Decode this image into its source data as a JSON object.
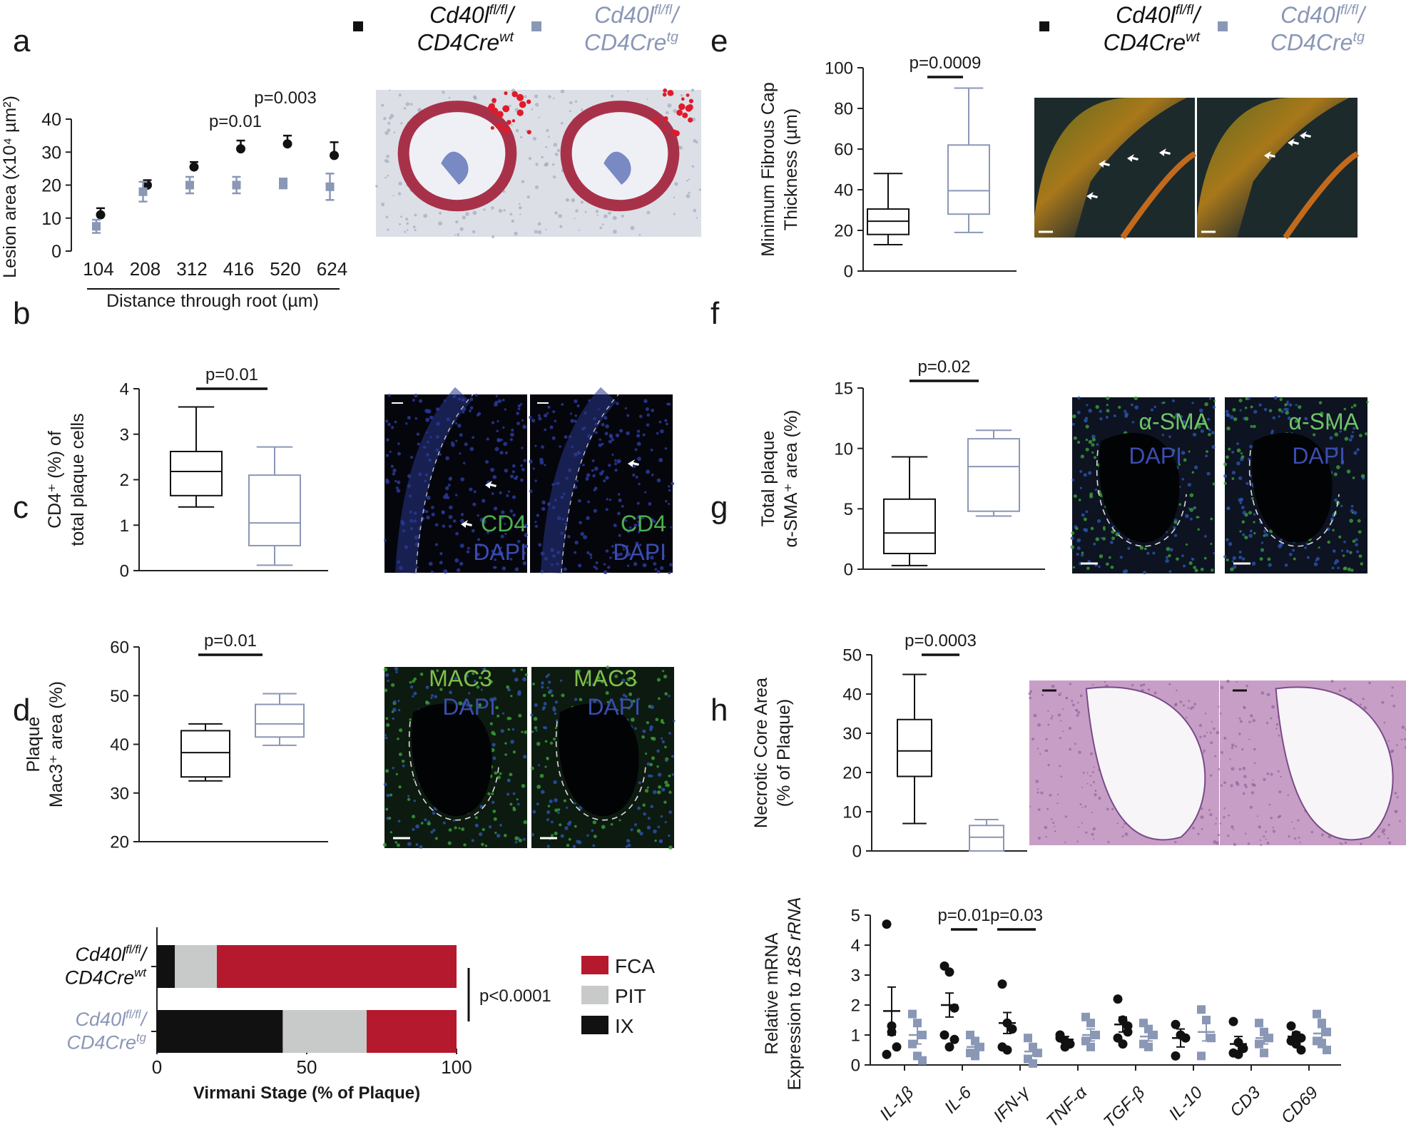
{
  "legend_top": {
    "wt": {
      "line1": "Cd40l",
      "sup1": "fl/fl",
      "slash": "/",
      "line2": "CD4Cre",
      "sup2": "wt"
    },
    "tg": {
      "line1": "Cd40l",
      "sup1": "fl/fl",
      "slash": "/",
      "line2": "CD4Cre",
      "sup2": "tg"
    }
  },
  "colors": {
    "wt": "#111111",
    "tg": "#8a97b5",
    "fca": "#b5192e",
    "pit": "#c8cac9",
    "ix": "#111111"
  },
  "panels": {
    "a": {
      "letter": "a",
      "p1": "p=0.01",
      "p2": "p=0.003"
    },
    "b": {
      "letter": "b",
      "p": "p=0.01"
    },
    "c": {
      "letter": "c",
      "p": "p=0.01"
    },
    "d": {
      "letter": "d",
      "p": "p<0.0001"
    },
    "e": {
      "letter": "e",
      "p": "p=0.0009"
    },
    "f": {
      "letter": "f",
      "p": "p=0.02"
    },
    "g": {
      "letter": "g",
      "p": "p=0.0003"
    },
    "h": {
      "letter": "h",
      "p1": "p=0.01",
      "p2": "p=0.03"
    }
  },
  "micro_labels": {
    "b_left_1": "CD4",
    "b_left_2": "DAPI",
    "b_right_1": "CD4",
    "b_right_2": "DAPI",
    "c_left_1": "MAC3",
    "c_left_2": "DAPI",
    "c_right_1": "MAC3",
    "c_right_2": "DAPI",
    "f_left_1": "α-SMA",
    "f_left_2": "DAPI",
    "f_right_1": "α-SMA",
    "f_right_2": "DAPI"
  },
  "chart_data": [
    {
      "id": "a",
      "type": "scatter",
      "xlabel": "Distance through root (µm)",
      "ylabel": "Lesion area (x10⁴ µm²)",
      "categories": [
        "104",
        "208",
        "312",
        "416",
        "520",
        "624"
      ],
      "ylim": [
        0,
        40
      ],
      "yticks": [
        0,
        10,
        20,
        30,
        40
      ],
      "series": [
        {
          "key": "wt",
          "values": [
            11,
            20,
            25.5,
            31,
            32.5,
            29
          ],
          "err": [
            2,
            1.5,
            1.5,
            2.5,
            2.5,
            4
          ]
        },
        {
          "key": "tg",
          "values": [
            7.5,
            18,
            20,
            20,
            20.5,
            19.5
          ],
          "err": [
            2,
            3,
            2.5,
            2.5,
            1.5,
            4
          ]
        }
      ]
    },
    {
      "id": "b",
      "type": "box",
      "ylabel1": "CD4⁺ (%) of",
      "ylabel2": "total plaque cells",
      "ylim": [
        0,
        4
      ],
      "yticks": [
        0,
        1,
        2,
        3,
        4
      ],
      "boxes": [
        {
          "key": "wt",
          "min": 1.4,
          "q1": 1.65,
          "median": 2.18,
          "q3": 2.62,
          "max": 3.6
        },
        {
          "key": "tg",
          "min": 0.12,
          "q1": 0.55,
          "median": 1.05,
          "q3": 2.1,
          "max": 2.72
        }
      ]
    },
    {
      "id": "c",
      "type": "box",
      "ylabel1": "Plaque",
      "ylabel2": "Mac3⁺ area (%)",
      "ylim": [
        20,
        60
      ],
      "yticks": [
        20,
        30,
        40,
        50,
        60
      ],
      "boxes": [
        {
          "key": "wt",
          "min": 32.5,
          "q1": 33.3,
          "median": 38.3,
          "q3": 42.8,
          "max": 44.2
        },
        {
          "key": "tg",
          "min": 39.8,
          "q1": 41.5,
          "median": 44.2,
          "q3": 48.2,
          "max": 50.4
        }
      ]
    },
    {
      "id": "d",
      "type": "bar",
      "orientation": "horizontal",
      "stacked": true,
      "xlabel": "Virmani Stage (% of Plaque)",
      "xlim": [
        0,
        100
      ],
      "xticks": [
        0,
        50,
        100
      ],
      "categories": [
        {
          "line1": "Cd40l",
          "sup1": "fl/fl",
          "slash": "/",
          "line2": "CD4Cre",
          "sup2": "wt",
          "key": "wt"
        },
        {
          "line1": "Cd40l",
          "sup1": "fl/fl",
          "slash": "/",
          "line2": "CD4Cre",
          "sup2": "tg",
          "key": "tg"
        }
      ],
      "series": [
        {
          "name": "IX",
          "key": "ix",
          "values": [
            6,
            42
          ]
        },
        {
          "name": "PIT",
          "key": "pit",
          "values": [
            14,
            28
          ]
        },
        {
          "name": "FCA",
          "key": "fca",
          "values": [
            80,
            30
          ]
        }
      ],
      "legend": [
        "FCA",
        "PIT",
        "IX"
      ]
    },
    {
      "id": "e",
      "type": "box",
      "ylabel1": "Minimum Fibrous Cap",
      "ylabel2": "Thickness (µm)",
      "ylim": [
        0,
        100
      ],
      "yticks": [
        0,
        20,
        40,
        60,
        80,
        100
      ],
      "boxes": [
        {
          "key": "wt",
          "min": 13,
          "q1": 18,
          "median": 24.5,
          "q3": 30.5,
          "max": 48
        },
        {
          "key": "tg",
          "min": 19,
          "q1": 28,
          "median": 39.5,
          "q3": 62,
          "max": 90
        }
      ]
    },
    {
      "id": "f",
      "type": "box",
      "ylabel1": "Total plaque",
      "ylabel2": "α-SMA⁺ area (%)",
      "ylim": [
        0,
        15
      ],
      "yticks": [
        0,
        5,
        10,
        15
      ],
      "boxes": [
        {
          "key": "wt",
          "min": 0.3,
          "q1": 1.3,
          "median": 3.0,
          "q3": 5.8,
          "max": 9.3
        },
        {
          "key": "tg",
          "min": 4.4,
          "q1": 4.8,
          "median": 8.5,
          "q3": 10.8,
          "max": 11.5
        }
      ]
    },
    {
      "id": "g",
      "type": "box",
      "ylabel1": "Necrotic Core Area",
      "ylabel2": "(% of Plaque)",
      "ylim": [
        0,
        50
      ],
      "yticks": [
        0,
        10,
        20,
        30,
        40,
        50
      ],
      "boxes": [
        {
          "key": "wt",
          "min": 7,
          "q1": 19,
          "median": 25.5,
          "q3": 33.5,
          "max": 45
        },
        {
          "key": "tg",
          "min": 0,
          "q1": 0,
          "median": 3.5,
          "q3": 6.5,
          "max": 8
        }
      ]
    },
    {
      "id": "h",
      "type": "scatter",
      "ylabel1": "Relative mRNA",
      "ylabel2": "Expression to",
      "ylabel3": "18S rRNA",
      "ylim": [
        0,
        5
      ],
      "yticks": [
        0,
        1,
        2,
        3,
        4,
        5
      ],
      "categories": [
        "IL-1β",
        "IL-6",
        "IFN-γ",
        "TNF-α",
        "TGF-β",
        "IL-10",
        "CD3",
        "CD69"
      ],
      "series": [
        {
          "key": "wt",
          "points": [
            [
              4.7,
              1.3,
              0.6,
              0.35,
              1.1
            ],
            [
              3.3,
              3.1,
              1.9,
              1.0,
              0.6,
              0.85
            ],
            [
              2.7,
              1.4,
              1.2,
              0.6,
              0.5
            ],
            [
              1.0,
              0.8,
              0.7,
              0.9,
              0.6
            ],
            [
              2.2,
              1.5,
              1.3,
              0.9,
              0.7,
              1.1
            ],
            [
              1.35,
              1.0,
              0.9,
              0.3
            ],
            [
              1.45,
              0.75,
              0.55,
              0.4,
              0.35
            ],
            [
              1.3,
              1.0,
              0.9,
              0.8,
              0.7,
              0.5
            ]
          ],
          "mean": [
            1.8,
            2.0,
            1.4,
            0.85,
            1.35,
            0.9,
            0.7,
            0.95
          ],
          "sem": [
            0.8,
            0.4,
            0.35,
            0.1,
            0.25,
            0.3,
            0.25,
            0.15
          ]
        },
        {
          "key": "tg",
          "points": [
            [
              1.7,
              1.4,
              1.0,
              0.7,
              0.3,
              0.15
            ],
            [
              1.0,
              0.8,
              0.6,
              0.4,
              0.3
            ],
            [
              0.9,
              0.6,
              0.4,
              0.2,
              0.05
            ],
            [
              1.6,
              1.4,
              1.0,
              0.8,
              0.6
            ],
            [
              1.4,
              1.2,
              1.0,
              0.7,
              0.6
            ],
            [
              1.85,
              1.5,
              0.9,
              0.3
            ],
            [
              1.4,
              1.1,
              0.9,
              0.7,
              0.4
            ],
            [
              1.7,
              1.4,
              1.1,
              0.8,
              0.7,
              0.5
            ]
          ],
          "mean": [
            1.0,
            0.6,
            0.45,
            1.0,
            0.95,
            1.1,
            0.9,
            1.05
          ],
          "sem": [
            0.3,
            0.15,
            0.15,
            0.2,
            0.15,
            0.3,
            0.2,
            0.2
          ]
        }
      ]
    }
  ]
}
